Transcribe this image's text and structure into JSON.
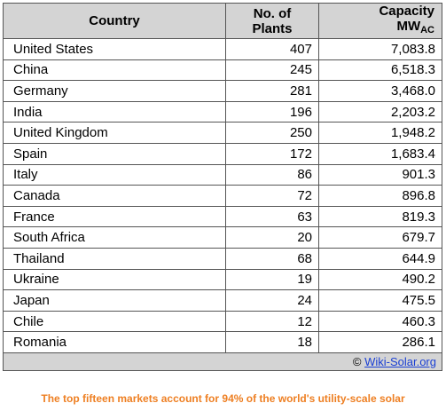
{
  "header": {
    "country": "Country",
    "plants_line1": "No. of",
    "plants_line2": "Plants",
    "capacity_line1": "Capacity",
    "capacity_unit": "MW",
    "capacity_sub": "AC"
  },
  "rows": [
    {
      "country": "United States",
      "plants": "407",
      "capacity": "7,083.8"
    },
    {
      "country": "China",
      "plants": "245",
      "capacity": "6,518.3"
    },
    {
      "country": "Germany",
      "plants": "281",
      "capacity": "3,468.0"
    },
    {
      "country": "India",
      "plants": "196",
      "capacity": "2,203.2"
    },
    {
      "country": "United Kingdom",
      "plants": "250",
      "capacity": "1,948.2"
    },
    {
      "country": "Spain",
      "plants": "172",
      "capacity": "1,683.4"
    },
    {
      "country": "Italy",
      "plants": "86",
      "capacity": "901.3"
    },
    {
      "country": "Canada",
      "plants": "72",
      "capacity": "896.8"
    },
    {
      "country": "France",
      "plants": "63",
      "capacity": "819.3"
    },
    {
      "country": "South Africa",
      "plants": "20",
      "capacity": "679.7"
    },
    {
      "country": "Thailand",
      "plants": "68",
      "capacity": "644.9"
    },
    {
      "country": "Ukraine",
      "plants": "19",
      "capacity": "490.2"
    },
    {
      "country": "Japan",
      "plants": "24",
      "capacity": "475.5"
    },
    {
      "country": "Chile",
      "plants": "12",
      "capacity": "460.3"
    },
    {
      "country": "Romania",
      "plants": "18",
      "capacity": "286.1"
    }
  ],
  "footer": {
    "copyright_symbol": "©",
    "credit_link": "Wiki-Solar.org"
  },
  "caption": "The top fifteen markets account for 94% of the world's utility-scale solar",
  "colors": {
    "header_bg": "#d4d4d4",
    "caption": "#ee7f22",
    "link": "#1a3fd4"
  }
}
